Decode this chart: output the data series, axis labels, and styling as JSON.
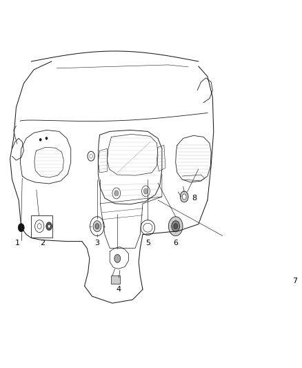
{
  "background_color": "#ffffff",
  "line_color": "#1a1a1a",
  "label_color": "#000000",
  "figsize": [
    4.38,
    5.33
  ],
  "dpi": 100,
  "lw": 0.75,
  "thin_lw": 0.4,
  "component_positions": {
    "1": {
      "label": [
        0.062,
        0.415
      ],
      "component": [
        0.062,
        0.455
      ]
    },
    "2": {
      "label": [
        0.112,
        0.385
      ],
      "component": [
        0.112,
        0.432
      ]
    },
    "3": {
      "label": [
        0.24,
        0.385
      ],
      "component": [
        0.24,
        0.432
      ]
    },
    "4": {
      "label": [
        0.265,
        0.33
      ],
      "component": [
        0.265,
        0.365
      ]
    },
    "5": {
      "label": [
        0.335,
        0.385
      ],
      "component": [
        0.335,
        0.428
      ]
    },
    "6": {
      "label": [
        0.395,
        0.385
      ],
      "component": [
        0.395,
        0.428
      ]
    },
    "7": {
      "label": [
        0.73,
        0.335
      ],
      "component": [
        0.73,
        0.43
      ]
    },
    "8": {
      "label": [
        0.86,
        0.46
      ],
      "component": [
        0.835,
        0.488
      ]
    }
  }
}
